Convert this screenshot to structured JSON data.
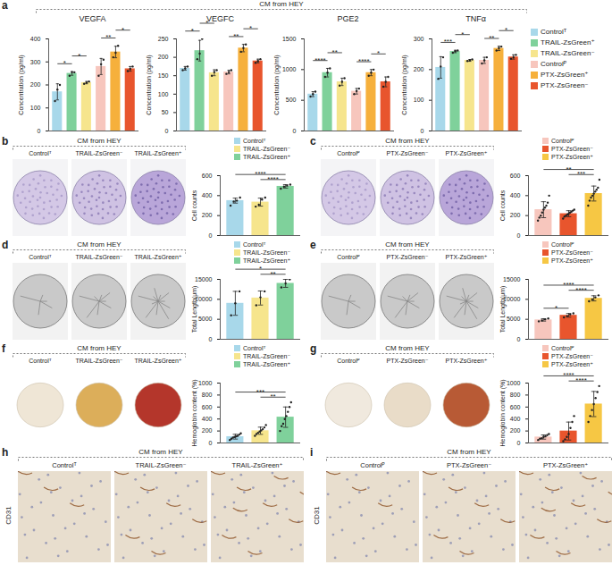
{
  "figure": {
    "panels": [
      {
        "panel": "a",
        "header": "CM from HEY"
      },
      {
        "panel": "b",
        "header": "CM from HEY",
        "images": [
          "Controlᵀ",
          "TRAIL-ZsGreen⁻",
          "TRAIL-ZsGreen⁺"
        ]
      },
      {
        "panel": "c",
        "header": "CM from HEY",
        "images": [
          "Controlᴾ",
          "PTX-ZsGreen⁻",
          "PTX-ZsGreen⁺"
        ]
      },
      {
        "panel": "d",
        "header": "CM from HEY",
        "images": [
          "Controlᵀ",
          "TRAIL-ZsGreen⁻",
          "TRAIL-ZsGreen⁺"
        ]
      },
      {
        "panel": "e",
        "header": "CM from HEY",
        "images": [
          "Controlᴾ",
          "PTX-ZsGreen⁻",
          "PTX-ZsGreen⁺"
        ]
      },
      {
        "panel": "f",
        "header": "CM from HEY",
        "images": [
          "Controlᵀ",
          "TRAIL-ZsGreen⁻",
          "TRAIL-ZsGreen⁺"
        ]
      },
      {
        "panel": "g",
        "header": "CM from HEY",
        "images": [
          "Controlᴾ",
          "PTX-ZsGreen⁻",
          "PTX-ZsGreen⁺"
        ]
      },
      {
        "panel": "h",
        "header": "CM from HEY",
        "images": [
          "Controlᵀ",
          "TRAIL-ZsGreen⁻",
          "TRAIL-ZsGreen⁺"
        ],
        "stain": "CD31"
      },
      {
        "panel": "i",
        "header": "CM from HEY",
        "images": [
          "Controlᴾ",
          "PTX-ZsGreen⁻",
          "PTX-ZsGreen⁺"
        ],
        "stain": "CD31"
      }
    ]
  },
  "chart_data": [
    {
      "panel": "a",
      "type": "bar",
      "title": "VEGFA",
      "y_label": "Concentration (pg/ml)",
      "categories": [
        "Controlᵀ",
        "TRAIL-ZsGreen⁺",
        "TRAIL-ZsGreen⁻",
        "Controlᴾ",
        "PTX-ZsGreen⁺",
        "PTX-ZsGreen⁻"
      ],
      "colors": [
        "#a8d8ea",
        "#7fd19b",
        "#f6e58d",
        "#f7c6bd",
        "#f6b03c",
        "#e8552d"
      ],
      "values": [
        170,
        250,
        210,
        280,
        343,
        270
      ],
      "errors": [
        35,
        8,
        5,
        35,
        25,
        10
      ],
      "points": [
        [
          130,
          180,
          200
        ],
        [
          240,
          255,
          255
        ],
        [
          205,
          210,
          215
        ],
        [
          240,
          290,
          310
        ],
        [
          320,
          340,
          370
        ],
        [
          260,
          270,
          280
        ]
      ],
      "significance": [
        {
          "from": 0,
          "to": 1,
          "label": "*"
        },
        {
          "from": 1,
          "to": 2,
          "label": "*"
        },
        {
          "from": 3,
          "to": 4,
          "label": "**"
        },
        {
          "from": 4,
          "to": 5,
          "label": "*"
        }
      ],
      "ylim": [
        0,
        400
      ],
      "yticks": [
        0,
        100,
        200,
        300,
        400
      ],
      "tick_labels": "y"
    },
    {
      "panel": "a",
      "type": "bar",
      "title": "VEGFC",
      "y_label": "Concentration (pg/ml)",
      "categories": [
        "Controlᵀ",
        "TRAIL-ZsGreen⁺",
        "TRAIL-ZsGreen⁻",
        "Controlᴾ",
        "PTX-ZsGreen⁺",
        "PTX-ZsGreen⁻"
      ],
      "colors": [
        "#a8d8ea",
        "#7fd19b",
        "#f6e58d",
        "#f7c6bd",
        "#f6b03c",
        "#e8552d"
      ],
      "values": [
        170,
        218,
        158,
        160,
        225,
        190
      ],
      "errors": [
        5,
        28,
        8,
        5,
        10,
        5
      ],
      "points": [
        [
          165,
          170,
          175
        ],
        [
          195,
          210,
          250
        ],
        [
          150,
          160,
          165
        ],
        [
          155,
          160,
          165
        ],
        [
          215,
          225,
          235
        ],
        [
          185,
          190,
          195
        ]
      ],
      "significance": [
        {
          "from": 0,
          "to": 1,
          "label": "*"
        },
        {
          "from": 1,
          "to": 2,
          "label": "*"
        },
        {
          "from": 3,
          "to": 4,
          "label": "**"
        },
        {
          "from": 4,
          "to": 5,
          "label": "*"
        }
      ],
      "ylim": [
        0,
        250
      ],
      "yticks": [
        0,
        50,
        100,
        150,
        200,
        250
      ],
      "tick_labels": "y"
    },
    {
      "panel": "a",
      "type": "bar",
      "title": "PGE2",
      "y_label": "Concentration (pg/ml)",
      "categories": [
        "Controlᵀ",
        "TRAIL-ZsGreen⁺",
        "TRAIL-ZsGreen⁻",
        "Controlᴾ",
        "PTX-ZsGreen⁺",
        "PTX-ZsGreen⁻"
      ],
      "colors": [
        "#a8d8ea",
        "#7fd19b",
        "#f6e58d",
        "#f7c6bd",
        "#f6b03c",
        "#e8552d"
      ],
      "values": [
        600,
        950,
        800,
        647,
        950,
        800
      ],
      "errors": [
        40,
        70,
        60,
        45,
        50,
        80
      ],
      "points": [
        [
          560,
          600,
          640
        ],
        [
          880,
          950,
          1020
        ],
        [
          740,
          800,
          860
        ],
        [
          600,
          650,
          690
        ],
        [
          900,
          950,
          1000
        ],
        [
          720,
          800,
          880
        ]
      ],
      "significance": [
        {
          "from": 0,
          "to": 1,
          "label": "****"
        },
        {
          "from": 1,
          "to": 2,
          "label": "**"
        },
        {
          "from": 3,
          "to": 4,
          "label": "****"
        },
        {
          "from": 4,
          "to": 5,
          "label": "*"
        }
      ],
      "ylim": [
        0,
        1500
      ],
      "yticks": [
        0,
        500,
        1000,
        1500
      ],
      "tick_labels": "y"
    },
    {
      "panel": "a",
      "type": "bar",
      "title": "TNFα",
      "y_label": "Concentration (pg/ml)",
      "categories": [
        "Controlᵀ",
        "TRAIL-ZsGreen⁺",
        "TRAIL-ZsGreen⁻",
        "Controlᴾ",
        "PTX-ZsGreen⁺",
        "PTX-ZsGreen⁻"
      ],
      "colors": [
        "#a8d8ea",
        "#7fd19b",
        "#f6e58d",
        "#f7c6bd",
        "#f6b03c",
        "#e8552d"
      ],
      "values": [
        207,
        259,
        230,
        230,
        269,
        241
      ],
      "errors": [
        35,
        4,
        3,
        10,
        7,
        7
      ],
      "points": [
        [
          170,
          210,
          240
        ],
        [
          255,
          260,
          262
        ],
        [
          228,
          230,
          233
        ],
        [
          220,
          230,
          240
        ],
        [
          262,
          270,
          275
        ],
        [
          235,
          240,
          248
        ]
      ],
      "significance": [
        {
          "from": 0,
          "to": 1,
          "label": "***"
        },
        {
          "from": 1,
          "to": 2,
          "label": "*"
        },
        {
          "from": 3,
          "to": 4,
          "label": "**"
        },
        {
          "from": 4,
          "to": 5,
          "label": "*"
        }
      ],
      "ylim": [
        0,
        300
      ],
      "yticks": [
        0,
        100,
        200,
        300
      ],
      "tick_labels": "y",
      "legend": "right"
    },
    {
      "panel": "b",
      "type": "bar",
      "y_label": "Cell counts",
      "categories": [
        "Controlᵀ",
        "TRAIL-ZsGreen⁻",
        "TRAIL-ZsGreen⁺"
      ],
      "colors": [
        "#a8d8ea",
        "#f6e58d",
        "#7fd19b"
      ],
      "values": [
        350,
        335,
        493
      ],
      "errors": [
        25,
        40,
        17
      ],
      "points": [
        [
          300,
          340,
          350,
          380
        ],
        [
          290,
          310,
          360,
          380
        ],
        [
          470,
          490,
          500,
          510
        ]
      ],
      "significance": [
        {
          "from": 1,
          "to": 2,
          "label": "****"
        },
        {
          "from": 0,
          "to": 2,
          "label": "****"
        }
      ],
      "ylim": [
        0,
        600
      ],
      "yticks": [
        0,
        200,
        400,
        600
      ],
      "tick_labels": "y",
      "legend": "top-right"
    },
    {
      "panel": "c",
      "type": "bar",
      "y_label": "Cell counts",
      "categories": [
        "Controlᴾ",
        "PTX-ZsGreen⁻",
        "PTX-ZsGreen⁺"
      ],
      "colors": [
        "#f7c6bd",
        "#e8552d",
        "#f6c744"
      ],
      "values": [
        259,
        219,
        421
      ],
      "errors": [
        80,
        30,
        75
      ],
      "points": [
        [
          150,
          180,
          200,
          230,
          260,
          280,
          300,
          330,
          400
        ],
        [
          170,
          190,
          200,
          210,
          220,
          230,
          240,
          250,
          260
        ],
        [
          300,
          350,
          380,
          400,
          420,
          440,
          460,
          480,
          560
        ]
      ],
      "significance": [
        {
          "from": 1,
          "to": 2,
          "label": "***"
        },
        {
          "from": 0,
          "to": 2,
          "label": "**"
        }
      ],
      "ylim": [
        0,
        600
      ],
      "yticks": [
        0,
        200,
        400,
        600
      ],
      "tick_labels": "y",
      "legend": "top-right"
    },
    {
      "panel": "d",
      "type": "bar",
      "y_label": "Total Length(μm)",
      "categories": [
        "Controlᵀ",
        "TRAIL-ZsGreen⁻",
        "TRAIL-ZsGreen⁺"
      ],
      "colors": [
        "#a8d8ea",
        "#f6e58d",
        "#7fd19b"
      ],
      "values": [
        9000,
        10333,
        14000
      ],
      "errors": [
        3000,
        1760,
        1000
      ],
      "points": [
        [
          6000,
          9000,
          12000
        ],
        [
          8500,
          10500,
          12000
        ],
        [
          13000,
          14000,
          15000
        ]
      ],
      "significance": [
        {
          "from": 1,
          "to": 2,
          "label": "**"
        },
        {
          "from": 0,
          "to": 2,
          "label": "*"
        }
      ],
      "ylim": [
        0,
        15000
      ],
      "yticks": [
        0,
        5000,
        10000,
        15000
      ],
      "tick_labels": "y",
      "legend": "top-right"
    },
    {
      "panel": "e",
      "type": "bar",
      "y_label": "Total Length(μm)",
      "categories": [
        "Controlᴾ",
        "PTX-ZsGreen⁻",
        "PTX-ZsGreen⁺"
      ],
      "colors": [
        "#f7c6bd",
        "#e8552d",
        "#f6c744"
      ],
      "values": [
        4850,
        6000,
        10250
      ],
      "errors": [
        300,
        450,
        650
      ],
      "points": [
        [
          4500,
          4700,
          5000,
          5200
        ],
        [
          5500,
          5800,
          6200,
          6500
        ],
        [
          9500,
          10000,
          10500,
          11000
        ]
      ],
      "significance": [
        {
          "from": 0,
          "to": 1,
          "label": "*"
        },
        {
          "from": 1,
          "to": 2,
          "label": "****"
        },
        {
          "from": 0,
          "to": 2,
          "label": "****"
        }
      ],
      "ylim": [
        0,
        15000
      ],
      "yticks": [
        0,
        5000,
        10000,
        15000
      ],
      "tick_labels": "y",
      "legend": "top-right"
    },
    {
      "panel": "f",
      "type": "bar",
      "y_label": "Hemoglobin content (%)",
      "categories": [
        "Controlᵀ",
        "TRAIL-ZsGreen⁻",
        "TRAIL-ZsGreen⁺"
      ],
      "colors": [
        "#a8d8ea",
        "#f6e58d",
        "#7fd19b"
      ],
      "values": [
        105,
        204,
        431
      ],
      "errors": [
        40,
        60,
        170
      ],
      "points": [
        [
          50,
          70,
          90,
          100,
          110,
          120,
          140,
          160
        ],
        [
          120,
          150,
          170,
          190,
          210,
          230,
          260,
          300
        ],
        [
          200,
          280,
          320,
          400,
          450,
          520,
          600,
          680
        ]
      ],
      "significance": [
        {
          "from": 1,
          "to": 2,
          "label": "**"
        },
        {
          "from": 0,
          "to": 2,
          "label": "***"
        }
      ],
      "ylim": [
        0,
        1000
      ],
      "yticks": [
        0,
        200,
        400,
        600,
        800,
        1000
      ],
      "tick_labels": "y",
      "legend": "top-right"
    },
    {
      "panel": "g",
      "type": "bar",
      "y_label": "Hemoglobin content (%)",
      "categories": [
        "Controlᴾ",
        "PTX-ZsGreen⁻",
        "PTX-ZsGreen⁺"
      ],
      "colors": [
        "#f7c6bd",
        "#e8552d",
        "#f6c744"
      ],
      "values": [
        99,
        199,
        650
      ],
      "errors": [
        35,
        150,
        210
      ],
      "points": [
        [
          50,
          70,
          80,
          100,
          110,
          130,
          150
        ],
        [
          30,
          60,
          100,
          150,
          250,
          350,
          450
        ],
        [
          350,
          450,
          550,
          650,
          750,
          850,
          950
        ]
      ],
      "significance": [
        {
          "from": 1,
          "to": 2,
          "label": "****"
        },
        {
          "from": 0,
          "to": 2,
          "label": "****"
        }
      ],
      "ylim": [
        0,
        1000
      ],
      "yticks": [
        0,
        200,
        400,
        600,
        800,
        1000
      ],
      "tick_labels": "y",
      "legend": "top-right"
    }
  ]
}
